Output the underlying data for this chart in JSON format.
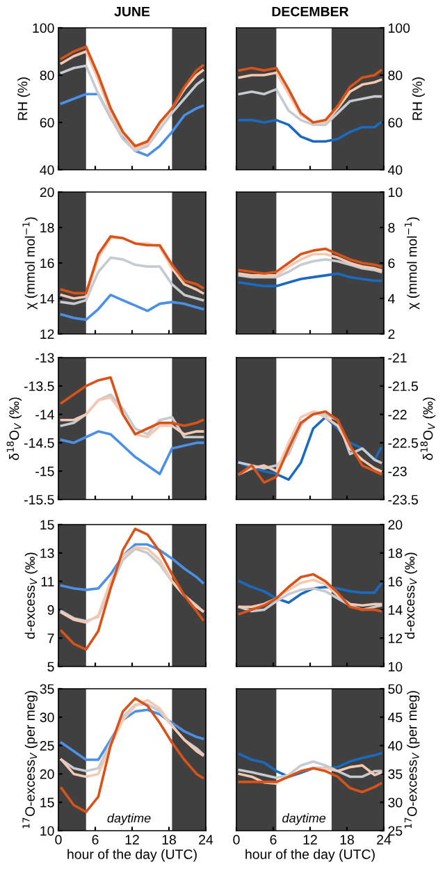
{
  "chart_data": [
    {
      "type": "line",
      "title": "JUNE",
      "ylabel": "RH (%)",
      "x": [
        0.5,
        2.5,
        4.5,
        6.5,
        8.5,
        10.5,
        12.5,
        14.5,
        16.5,
        18.5,
        20.5,
        22.5,
        23.5
      ],
      "xlim": [
        0,
        24
      ],
      "xticks": [
        0,
        6,
        12,
        18,
        24
      ],
      "ylim": [
        40,
        100
      ],
      "yticks": [
        40,
        60,
        80,
        100
      ],
      "tick_labels": "y",
      "grid": false,
      "legend": false,
      "line_style": "solid",
      "marker": "none",
      "bands": [
        {
          "axis": "x",
          "from": 0,
          "to": 4.5,
          "color": "#404040"
        },
        {
          "axis": "x",
          "from": 18.5,
          "to": 24,
          "color": "#404040"
        }
      ],
      "series": [
        {
          "color": "#4a90e8",
          "values": [
            68,
            70,
            72,
            72,
            62,
            54,
            48,
            46,
            50,
            56,
            63,
            66,
            67
          ]
        },
        {
          "color": "#c5cbd1",
          "values": [
            81,
            83,
            84,
            72,
            62,
            53,
            48,
            50,
            57,
            64,
            70,
            76,
            78
          ]
        },
        {
          "color": "#f5c8b1",
          "values": [
            85,
            88,
            90,
            78,
            64,
            55,
            49,
            51,
            59,
            66,
            74,
            80,
            82
          ]
        },
        {
          "color": "#d95319",
          "values": [
            87,
            90,
            92,
            80,
            66,
            56,
            50,
            52,
            60,
            66,
            75,
            82,
            84
          ]
        }
      ]
    },
    {
      "type": "line",
      "title": "DECEMBER",
      "ylabel": "RH (%)",
      "x": [
        0.5,
        2.5,
        4.5,
        6.5,
        8.5,
        10.5,
        12.5,
        14.5,
        16.5,
        18.5,
        20.5,
        22.5,
        23.5
      ],
      "xlim": [
        0,
        24
      ],
      "xticks": [
        0,
        6,
        12,
        18,
        24
      ],
      "ylim": [
        40,
        100
      ],
      "yticks": [
        40,
        60,
        80,
        100
      ],
      "tick_labels": "y",
      "grid": false,
      "legend": false,
      "line_style": "solid",
      "marker": "none",
      "bands": [
        {
          "axis": "x",
          "from": 0,
          "to": 6.5,
          "color": "#404040"
        },
        {
          "axis": "x",
          "from": 15.5,
          "to": 24,
          "color": "#404040"
        }
      ],
      "series": [
        {
          "color": "#1a6ac0",
          "values": [
            61,
            61,
            60,
            61,
            59,
            54,
            52,
            52,
            53,
            56,
            58,
            58,
            60
          ]
        },
        {
          "color": "#c5cbd1",
          "values": [
            72,
            73,
            72,
            74,
            65,
            61,
            59,
            59,
            64,
            69,
            70,
            71,
            71
          ]
        },
        {
          "color": "#f5c8b1",
          "values": [
            79,
            80,
            80,
            81,
            72,
            63,
            60,
            60,
            66,
            73,
            76,
            77,
            78
          ]
        },
        {
          "color": "#d95319",
          "values": [
            82,
            83,
            82,
            83,
            74,
            64,
            60,
            61,
            67,
            75,
            79,
            80,
            82
          ]
        }
      ]
    },
    {
      "type": "line",
      "ylabel": "χ (mmol mol$^{−1}$)",
      "x": [
        0.5,
        2.5,
        4.5,
        6.5,
        8.5,
        10.5,
        12.5,
        14.5,
        16.5,
        18.5,
        20.5,
        22.5,
        23.5
      ],
      "xlim": [
        0,
        24
      ],
      "xticks": [
        0,
        6,
        12,
        18,
        24
      ],
      "ylim": [
        12,
        20
      ],
      "yticks": [
        12,
        14,
        16,
        18,
        20
      ],
      "tick_labels": "y",
      "grid": false,
      "legend": false,
      "line_style": "solid",
      "marker": "none",
      "bands": [
        {
          "axis": "x",
          "from": 0,
          "to": 4.5,
          "color": "#404040"
        },
        {
          "axis": "x",
          "from": 18.5,
          "to": 24,
          "color": "#404040"
        }
      ],
      "series": [
        {
          "color": "#4a90e8",
          "values": [
            13.1,
            12.9,
            12.8,
            13.4,
            14.2,
            13.9,
            13.6,
            13.3,
            13.7,
            13.8,
            13.7,
            13.5,
            13.4
          ]
        },
        {
          "color": "#c5cbd1",
          "values": [
            13.8,
            13.7,
            13.9,
            15.5,
            16.3,
            16.2,
            15.9,
            15.8,
            15.8,
            14.8,
            14.2,
            14.0,
            13.9
          ]
        },
        {
          "color": "#f5c8b1",
          "values": [
            14.2,
            14.0,
            14.1,
            16.3,
            17.4,
            17.4,
            17.1,
            17.1,
            16.9,
            15.7,
            14.8,
            14.5,
            14.3
          ]
        },
        {
          "color": "#d95319",
          "values": [
            14.5,
            14.3,
            14.3,
            16.5,
            17.5,
            17.4,
            17.1,
            17.0,
            17.0,
            15.9,
            15.0,
            14.8,
            14.6
          ]
        }
      ]
    },
    {
      "type": "line",
      "ylabel": "χ (mmol mol$^{−1}$)",
      "x": [
        0.5,
        2.5,
        4.5,
        6.5,
        8.5,
        10.5,
        12.5,
        14.5,
        16.5,
        18.5,
        20.5,
        22.5,
        23.5
      ],
      "xlim": [
        0,
        24
      ],
      "xticks": [
        0,
        6,
        12,
        18,
        24
      ],
      "ylim": [
        2,
        10
      ],
      "yticks": [
        2,
        4,
        6,
        8,
        10
      ],
      "tick_labels": "y",
      "grid": false,
      "legend": false,
      "line_style": "solid",
      "marker": "none",
      "bands": [
        {
          "axis": "x",
          "from": 0,
          "to": 6.5,
          "color": "#404040"
        },
        {
          "axis": "x",
          "from": 15.5,
          "to": 24,
          "color": "#404040"
        }
      ],
      "series": [
        {
          "color": "#1a6ac0",
          "values": [
            4.9,
            4.8,
            4.7,
            4.7,
            4.9,
            5.1,
            5.2,
            5.3,
            5.4,
            5.2,
            5.1,
            5.0,
            5.0
          ]
        },
        {
          "color": "#c5cbd1",
          "values": [
            5.3,
            5.2,
            5.2,
            5.2,
            5.5,
            5.9,
            6.1,
            6.2,
            6.1,
            5.9,
            5.7,
            5.6,
            5.5
          ]
        },
        {
          "color": "#f5c8b1",
          "values": [
            5.4,
            5.3,
            5.3,
            5.3,
            5.8,
            6.2,
            6.5,
            6.5,
            6.3,
            6.0,
            5.8,
            5.7,
            5.6
          ]
        },
        {
          "color": "#d95319",
          "values": [
            5.6,
            5.5,
            5.4,
            5.5,
            6.0,
            6.5,
            6.7,
            6.8,
            6.5,
            6.2,
            6.0,
            5.9,
            5.8
          ]
        }
      ]
    },
    {
      "type": "line",
      "ylabel": "δ$^{18}$O$_{V}$ (‰)",
      "x": [
        0.5,
        2.5,
        4.5,
        6.5,
        8.5,
        10.5,
        12.5,
        14.5,
        16.5,
        18.5,
        20.5,
        22.5,
        23.5
      ],
      "xlim": [
        0,
        24
      ],
      "xticks": [
        0,
        6,
        12,
        18,
        24
      ],
      "ylim": [
        -15.5,
        -13
      ],
      "yticks": [
        -15.5,
        -15,
        -14.5,
        -14,
        -13.5,
        -13
      ],
      "tick_labels": "y",
      "grid": false,
      "legend": false,
      "line_style": "solid",
      "marker": "none",
      "bands": [
        {
          "axis": "x",
          "from": 0,
          "to": 4.5,
          "color": "#404040"
        },
        {
          "axis": "x",
          "from": 18.5,
          "to": 24,
          "color": "#404040"
        }
      ],
      "series": [
        {
          "color": "#4a90e8",
          "values": [
            -14.45,
            -14.5,
            -14.4,
            -14.3,
            -14.35,
            -14.55,
            -14.75,
            -14.9,
            -15.05,
            -14.6,
            -14.55,
            -14.5,
            -14.5
          ]
        },
        {
          "color": "#c5cbd1",
          "values": [
            -14.2,
            -14.15,
            -14.0,
            -13.75,
            -13.65,
            -13.9,
            -14.25,
            -14.35,
            -14.1,
            -14.05,
            -14.4,
            -14.4,
            -14.4
          ]
        },
        {
          "color": "#f5c8b1",
          "values": [
            -14.1,
            -14.1,
            -14.0,
            -13.75,
            -13.7,
            -14.0,
            -14.35,
            -14.4,
            -14.2,
            -14.2,
            -14.35,
            -14.3,
            -14.3
          ]
        },
        {
          "color": "#d95319",
          "values": [
            -13.8,
            -13.65,
            -13.5,
            -13.4,
            -13.35,
            -14.0,
            -14.35,
            -14.25,
            -14.15,
            -14.15,
            -14.2,
            -14.15,
            -14.1
          ]
        }
      ]
    },
    {
      "type": "line",
      "ylabel": "δ$^{18}$O$_{V}$ (‰)",
      "x": [
        0.5,
        2.5,
        4.5,
        6.5,
        8.5,
        10.5,
        12.5,
        14.5,
        16.5,
        18.5,
        20.5,
        22.5,
        23.5
      ],
      "xlim": [
        0,
        24
      ],
      "xticks": [
        0,
        6,
        12,
        18,
        24
      ],
      "ylim": [
        -23.5,
        -21
      ],
      "yticks": [
        -23.5,
        -23,
        -22.5,
        -22,
        -21.5,
        -21
      ],
      "tick_labels": "y",
      "grid": false,
      "legend": false,
      "line_style": "solid",
      "marker": "none",
      "bands": [
        {
          "axis": "x",
          "from": 0,
          "to": 6.5,
          "color": "#404040"
        },
        {
          "axis": "x",
          "from": 15.5,
          "to": 24,
          "color": "#404040"
        }
      ],
      "series": [
        {
          "color": "#1a6ac0",
          "values": [
            -22.85,
            -22.95,
            -23.0,
            -23.05,
            -23.15,
            -22.85,
            -22.25,
            -22.05,
            -22.25,
            -22.5,
            -22.6,
            -22.8,
            -22.6
          ]
        },
        {
          "color": "#c5cbd1",
          "values": [
            -22.85,
            -22.9,
            -22.95,
            -22.9,
            -22.7,
            -22.2,
            -21.95,
            -22.0,
            -22.1,
            -22.7,
            -22.6,
            -22.8,
            -22.85
          ]
        },
        {
          "color": "#f5c8b1",
          "values": [
            -23.05,
            -22.95,
            -22.9,
            -23.0,
            -22.5,
            -22.05,
            -21.95,
            -22.05,
            -22.2,
            -22.6,
            -22.8,
            -22.95,
            -23.0
          ]
        },
        {
          "color": "#d95319",
          "values": [
            -23.05,
            -22.9,
            -23.2,
            -23.1,
            -22.6,
            -22.15,
            -22.0,
            -21.95,
            -22.1,
            -22.55,
            -22.9,
            -23.0,
            -23.05
          ]
        }
      ]
    },
    {
      "type": "line",
      "ylabel": "d-excess$_{V}$ (‰)",
      "x": [
        0.5,
        2.5,
        4.5,
        6.5,
        8.5,
        10.5,
        12.5,
        14.5,
        16.5,
        18.5,
        20.5,
        22.5,
        23.5
      ],
      "xlim": [
        0,
        24
      ],
      "xticks": [
        0,
        6,
        12,
        18,
        24
      ],
      "ylim": [
        5,
        15
      ],
      "yticks": [
        5,
        7,
        9,
        11,
        13,
        15
      ],
      "tick_labels": "y",
      "grid": false,
      "legend": false,
      "line_style": "solid",
      "marker": "none",
      "bands": [
        {
          "axis": "x",
          "from": 0,
          "to": 4.5,
          "color": "#404040"
        },
        {
          "axis": "x",
          "from": 18.5,
          "to": 24,
          "color": "#404040"
        }
      ],
      "series": [
        {
          "color": "#4a90e8",
          "values": [
            10.7,
            10.5,
            10.4,
            10.5,
            11.5,
            12.8,
            13.6,
            13.6,
            13.2,
            12.6,
            11.9,
            11.3,
            10.9
          ]
        },
        {
          "color": "#c5cbd1",
          "values": [
            8.9,
            8.4,
            8.2,
            8.5,
            10.6,
            12.5,
            13.3,
            13.0,
            12.2,
            11.0,
            10.0,
            9.3,
            8.9
          ]
        },
        {
          "color": "#f5c8b1",
          "values": [
            8.8,
            8.3,
            8.1,
            8.6,
            11.0,
            12.8,
            13.4,
            13.3,
            12.5,
            11.0,
            10.0,
            9.2,
            8.9
          ]
        },
        {
          "color": "#d95319",
          "values": [
            7.5,
            6.6,
            6.2,
            7.5,
            10.5,
            13.2,
            14.7,
            14.3,
            13.1,
            11.5,
            10.0,
            8.9,
            8.3
          ]
        }
      ]
    },
    {
      "type": "line",
      "ylabel": "d-excess$_{V}$ (‰)",
      "x": [
        0.5,
        2.5,
        4.5,
        6.5,
        8.5,
        10.5,
        12.5,
        14.5,
        16.5,
        18.5,
        20.5,
        22.5,
        23.5
      ],
      "xlim": [
        0,
        24
      ],
      "xticks": [
        0,
        6,
        12,
        18,
        24
      ],
      "ylim": [
        10,
        20
      ],
      "yticks": [
        10,
        12,
        14,
        16,
        18,
        20
      ],
      "tick_labels": "y",
      "grid": false,
      "legend": false,
      "line_style": "solid",
      "marker": "none",
      "bands": [
        {
          "axis": "x",
          "from": 0,
          "to": 6.5,
          "color": "#404040"
        },
        {
          "axis": "x",
          "from": 15.5,
          "to": 24,
          "color": "#404040"
        }
      ],
      "series": [
        {
          "color": "#1a6ac0",
          "values": [
            16.0,
            15.6,
            15.3,
            14.8,
            14.5,
            15.1,
            15.5,
            15.6,
            15.5,
            15.3,
            15.2,
            15.2,
            15.8
          ]
        },
        {
          "color": "#c5cbd1",
          "values": [
            14.2,
            13.9,
            14.0,
            14.6,
            15.1,
            15.4,
            15.5,
            15.3,
            14.8,
            14.3,
            14.0,
            14.2,
            14.3
          ]
        },
        {
          "color": "#f5c8b1",
          "values": [
            14.2,
            14.2,
            14.4,
            14.8,
            15.4,
            15.9,
            16.1,
            15.8,
            15.0,
            14.4,
            14.3,
            14.4,
            14.4
          ]
        },
        {
          "color": "#d95319",
          "values": [
            13.7,
            14.0,
            14.3,
            14.8,
            15.6,
            16.3,
            16.5,
            16.0,
            15.2,
            14.2,
            14.0,
            14.0,
            13.9
          ]
        }
      ]
    },
    {
      "type": "line",
      "xlabel": "hour of the day (UTC)",
      "ylabel": "$^{17}$O-excess$_{V}$ (per meg)",
      "annotations": [
        "daytime"
      ],
      "x": [
        0.5,
        2.5,
        4.5,
        6.5,
        8.5,
        10.5,
        12.5,
        14.5,
        16.5,
        18.5,
        20.5,
        22.5,
        23.5
      ],
      "xlim": [
        0,
        24
      ],
      "xticks": [
        0,
        6,
        12,
        18,
        24
      ],
      "ylim": [
        10,
        35
      ],
      "yticks": [
        10,
        15,
        20,
        25,
        30,
        35
      ],
      "grid": false,
      "legend": false,
      "line_style": "solid",
      "marker": "none",
      "bands": [
        {
          "axis": "x",
          "from": 0,
          "to": 4.5,
          "color": "#404040"
        },
        {
          "axis": "x",
          "from": 18.5,
          "to": 24,
          "color": "#404040"
        }
      ],
      "series": [
        {
          "color": "#4a90e8",
          "values": [
            25.5,
            24,
            22.5,
            22.5,
            26,
            29.5,
            31,
            31.3,
            30.5,
            29,
            27.5,
            26.5,
            26.2
          ]
        },
        {
          "color": "#c5cbd1",
          "values": [
            22.5,
            21,
            20.5,
            21,
            25.5,
            30,
            32.2,
            32.3,
            31,
            28.5,
            26,
            24.5,
            23.5
          ]
        },
        {
          "color": "#f5c8b1",
          "values": [
            22.5,
            20,
            19.5,
            20,
            25,
            29.5,
            32,
            33,
            31.5,
            28.5,
            26,
            24,
            23.3
          ]
        },
        {
          "color": "#d95319",
          "values": [
            17.5,
            14.5,
            13.3,
            16,
            25,
            31,
            33.3,
            32,
            29,
            25.5,
            22.5,
            20,
            19.3
          ]
        }
      ]
    },
    {
      "type": "line",
      "xlabel": "hour of the day (UTC)",
      "ylabel": "$^{17}$O-excess$_{V}$ (per meg)",
      "annotations": [
        "daytime"
      ],
      "x": [
        0.5,
        2.5,
        4.5,
        6.5,
        8.5,
        10.5,
        12.5,
        14.5,
        16.5,
        18.5,
        20.5,
        22.5,
        23.5
      ],
      "xlim": [
        0,
        24
      ],
      "xticks": [
        0,
        6,
        12,
        18,
        24
      ],
      "ylim": [
        25,
        50
      ],
      "yticks": [
        25,
        30,
        35,
        40,
        45,
        50
      ],
      "grid": false,
      "legend": false,
      "line_style": "solid",
      "marker": "none",
      "bands": [
        {
          "axis": "x",
          "from": 0,
          "to": 6.5,
          "color": "#404040"
        },
        {
          "axis": "x",
          "from": 15.5,
          "to": 24,
          "color": "#404040"
        }
      ],
      "series": [
        {
          "color": "#1a6ac0",
          "values": [
            38.5,
            37.5,
            37,
            35.5,
            34.5,
            35.2,
            36,
            36,
            36.2,
            37.2,
            37.8,
            38.3,
            38.6
          ]
        },
        {
          "color": "#c5cbd1",
          "values": [
            35.7,
            35.3,
            34.8,
            34.3,
            34.8,
            36.5,
            37.2,
            36.5,
            35.5,
            34.5,
            34.5,
            35.5,
            35.5
          ]
        },
        {
          "color": "#f5c8b1",
          "values": [
            35,
            34.5,
            33.5,
            33.3,
            34.7,
            35.5,
            36,
            36,
            35.5,
            36.2,
            36.5,
            34.8,
            35.2
          ]
        },
        {
          "color": "#d95319",
          "values": [
            33.6,
            33.6,
            33.6,
            33.6,
            34.5,
            35.5,
            36,
            35.5,
            34.5,
            32.5,
            31.8,
            32.7,
            33.3
          ]
        }
      ]
    }
  ]
}
